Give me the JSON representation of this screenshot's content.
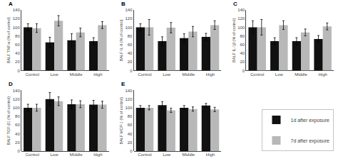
{
  "chart_data": [
    {
      "type": "bar",
      "title": "A",
      "ylabel": "BALF TNF-α (% of control)",
      "categories": [
        "Control",
        "Low",
        "Middle",
        "High"
      ],
      "series": [
        {
          "name": "1d after exposure",
          "color": "#111111",
          "values": [
            100,
            65,
            70,
            68
          ],
          "errors": [
            8,
            12,
            15,
            8
          ]
        },
        {
          "name": "7d after exposure",
          "color": "#b8b8b8",
          "values": [
            98,
            115,
            88,
            105
          ],
          "errors": [
            10,
            12,
            10,
            8
          ]
        }
      ],
      "ylim": [
        0,
        140
      ],
      "yticks": [
        0,
        20,
        40,
        60,
        80,
        100,
        120,
        140
      ],
      "grid": false,
      "legend": "lower right"
    },
    {
      "type": "bar",
      "title": "B",
      "ylabel": "BALF IL-6 (% of control)",
      "categories": [
        "Control",
        "Low",
        "Middle",
        "High"
      ],
      "series": [
        {
          "name": "1d after exposure",
          "color": "#111111",
          "values": [
            100,
            68,
            75,
            78
          ],
          "errors": [
            8,
            10,
            10,
            8
          ]
        },
        {
          "name": "7d after exposure",
          "color": "#b8b8b8",
          "values": [
            100,
            99,
            90,
            105
          ],
          "errors": [
            18,
            12,
            12,
            10
          ]
        }
      ],
      "ylim": [
        0,
        140
      ],
      "yticks": [
        0,
        20,
        40,
        60,
        80,
        100,
        120,
        140
      ],
      "grid": false,
      "legend": "lower right"
    },
    {
      "type": "bar",
      "title": "C",
      "ylabel": "BALF IL-1β (% of control)",
      "categories": [
        "Control",
        "Low",
        "Middle",
        "High"
      ],
      "series": [
        {
          "name": "1d after exposure",
          "color": "#111111",
          "values": [
            100,
            68,
            68,
            73
          ],
          "errors": [
            15,
            8,
            8,
            8
          ]
        },
        {
          "name": "7d after exposure",
          "color": "#b8b8b8",
          "values": [
            100,
            105,
            88,
            102
          ],
          "errors": [
            18,
            10,
            8,
            8
          ]
        }
      ],
      "ylim": [
        0,
        140
      ],
      "yticks": [
        0,
        20,
        40,
        60,
        80,
        100,
        120,
        140
      ],
      "grid": false,
      "legend": "lower right"
    },
    {
      "type": "bar",
      "title": "D",
      "ylabel": "BALF TGF-β1 (% of control)",
      "categories": [
        "Control",
        "Low",
        "Middle",
        "High"
      ],
      "series": [
        {
          "name": "1d after exposure",
          "color": "#111111",
          "values": [
            100,
            120,
            108,
            107
          ],
          "errors": [
            8,
            15,
            10,
            10
          ]
        },
        {
          "name": "7d after exposure",
          "color": "#b8b8b8",
          "values": [
            100,
            115,
            108,
            107
          ],
          "errors": [
            8,
            10,
            8,
            8
          ]
        }
      ],
      "ylim": [
        0,
        140
      ],
      "yticks": [
        0,
        20,
        40,
        60,
        80,
        100,
        120,
        140
      ],
      "grid": false,
      "legend": "lower right"
    },
    {
      "type": "bar",
      "title": "E",
      "ylabel": "BALF MCP-1 (% of control)",
      "categories": [
        "Control",
        "Low",
        "Middle",
        "High"
      ],
      "series": [
        {
          "name": "1d after exposure",
          "color": "#111111",
          "values": [
            100,
            106,
            100,
            105
          ],
          "errors": [
            5,
            8,
            5,
            5
          ]
        },
        {
          "name": "7d after exposure",
          "color": "#b8b8b8",
          "values": [
            100,
            94,
            97,
            96
          ],
          "errors": [
            5,
            5,
            5,
            5
          ]
        }
      ],
      "ylim": [
        0,
        140
      ],
      "yticks": [
        0,
        20,
        40,
        60,
        80,
        100,
        120,
        140
      ],
      "grid": false,
      "legend": "lower right"
    }
  ]
}
